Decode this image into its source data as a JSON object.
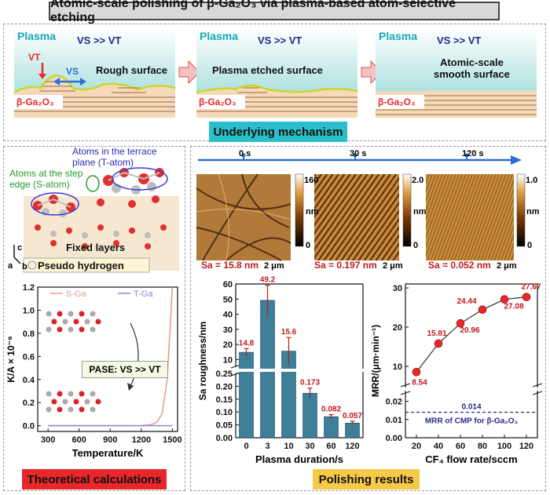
{
  "title": "Atomic-scale polishing of β-Ga₂O₃ via plasma-based atom-selective etching",
  "mechanism": {
    "panels": [
      {
        "plasma": "Plasma",
        "speed": "VS >> VT",
        "vt": "VT",
        "vs": "VS",
        "surface": "Rough surface",
        "material": "β-Ga₂O₃"
      },
      {
        "plasma": "Plasma",
        "speed": "VS >> VT",
        "surface": "Plasma etched surface",
        "material": "β-Ga₂O₃"
      },
      {
        "plasma": "Plasma",
        "speed": "VS >> VT",
        "surface_line1": "Atomic-scale",
        "surface_line2": "smooth surface",
        "material": "β-Ga₂O₃"
      }
    ],
    "label": "Underlying mechanism"
  },
  "theory": {
    "terrace_label_line1": "Atoms in the terrace",
    "terrace_label_line2": "plane (T-atom)",
    "step_label_line1": "Atoms at the step",
    "step_label_line2": "edge (S-atom)",
    "fixed_layers": "Fixed layers",
    "pseudo_hydrogen": "Pseudo hydrogen",
    "axis_c": "c",
    "axis_a": "a",
    "axis_b": "b",
    "pase_label": "PASE: VS >> VT",
    "label": "Theoretical calculations"
  },
  "polishing": {
    "label": "Polishing results",
    "timeline": [
      "0 s",
      "30 s",
      "120 s"
    ],
    "afm": [
      {
        "sa": "Sa = 15.8 nm",
        "scale_max": "160",
        "scale_min": "0",
        "unit": "nm",
        "scalebar": "2 μm"
      },
      {
        "sa": "Sa = 0.197 nm",
        "scale_max": "2.0",
        "scale_min": "0",
        "unit": "nm",
        "scalebar": "2 μm"
      },
      {
        "sa": "Sa = 0.052 nm",
        "scale_max": "1.0",
        "scale_min": "0",
        "unit": "nm",
        "scalebar": "2 μm"
      }
    ]
  },
  "chart_data": [
    {
      "type": "line",
      "title": "",
      "xlabel": "Temperature/K",
      "ylabel": "K/A × 10⁻⁸",
      "xlim": [
        200,
        1550
      ],
      "ylim": [
        -0.05,
        1.2
      ],
      "xticks": [
        300,
        600,
        900,
        1200,
        1500
      ],
      "yticks": [
        0.0,
        0.2,
        0.4,
        0.6,
        0.8,
        1.0,
        1.2
      ],
      "legend_position": "top",
      "series": [
        {
          "name": "S-Ga",
          "color": "#e89a8c",
          "x": [
            300,
            600,
            900,
            1100,
            1200,
            1300,
            1350,
            1400,
            1450,
            1500
          ],
          "y": [
            0,
            0,
            0,
            0.0,
            0.001,
            0.01,
            0.03,
            0.1,
            0.4,
            1.2
          ]
        },
        {
          "name": "T-Ga",
          "color": "#8888e6",
          "x": [
            300,
            600,
            900,
            1200,
            1500
          ],
          "y": [
            0,
            0,
            0,
            0,
            0
          ]
        }
      ]
    },
    {
      "type": "bar",
      "title": "",
      "xlabel": "Plasma duration/s",
      "ylabel": "Sa roughness/nm",
      "categories": [
        "0",
        "3",
        "10",
        "30",
        "60",
        "120"
      ],
      "values": [
        14.8,
        49.2,
        15.6,
        0.173,
        0.082,
        0.057
      ],
      "errors": [
        2.5,
        10,
        9,
        0.02,
        0.008,
        0.007
      ],
      "value_labels": [
        "14.8",
        "49.2",
        "15.6",
        "0.173",
        "0.082",
        "0.057"
      ],
      "upper_yticks": [
        10,
        20,
        30,
        40,
        50,
        60
      ],
      "lower_yticks": [
        0.0,
        0.05,
        0.1,
        0.15,
        0.2,
        0.25
      ],
      "axis_break": true,
      "bar_color": "#3d7e98"
    },
    {
      "type": "scatter",
      "title": "",
      "xlabel": "CF₄ flow rate/sccm",
      "ylabel": "MRR/(μm·min⁻¹)",
      "x": [
        20,
        40,
        60,
        80,
        100,
        120
      ],
      "y": [
        8.54,
        15.81,
        20.96,
        24.44,
        27.08,
        27.67
      ],
      "value_labels": [
        "8.54",
        "15.81",
        "20.96",
        "24.44",
        "27.08",
        "27.67"
      ],
      "xticks": [
        20,
        40,
        60,
        80,
        100,
        120
      ],
      "upper_yticks": [
        10,
        20,
        30
      ],
      "lower_yticks": [
        0.0,
        0.01,
        0.02
      ],
      "reference_value": 0.014,
      "reference_label": "0.014",
      "reference_text": "MRR of CMP for β-Ga₂O₃",
      "axis_break": true,
      "marker_color": "#e8272a"
    }
  ]
}
